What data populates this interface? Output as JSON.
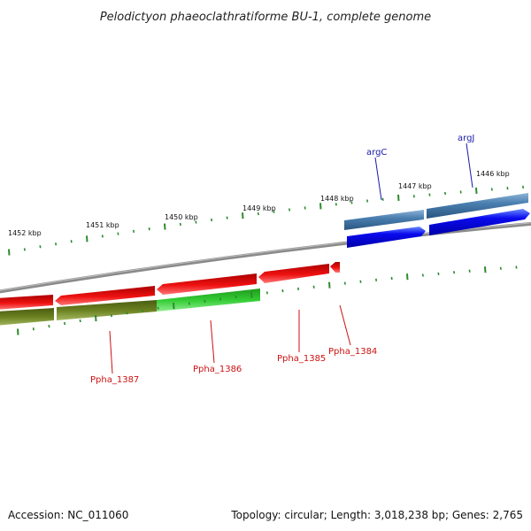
{
  "title": "Pelodictyon phaeoclathratiforme BU-1, complete genome",
  "footer": {
    "accession": "Accession: NC_011060",
    "topology": "Topology: circular; Length: 3,018,238 bp; Genes: 2,765"
  },
  "colors": {
    "backbone": "#808080",
    "tick": "#2e8b2e",
    "forward_label": "#1a1aa8",
    "reverse_label": "#cc1111",
    "cog_steel": "#4a7fb0",
    "cds_forward": "#0a0aee",
    "cds_reverse": "#ee1111",
    "cog_olive": "#6b8020",
    "cog_green": "#33cc33"
  },
  "kbp_labels": [
    "1446 kbp",
    "1447 kbp",
    "1448 kbp",
    "1449 kbp",
    "1450 kbp",
    "1451 kbp",
    "1452 kbp"
  ],
  "genes": {
    "forward": [
      {
        "label": "argC"
      },
      {
        "label": "argJ"
      }
    ],
    "reverse": [
      {
        "label": "Ppha_1384"
      },
      {
        "label": "Ppha_1385"
      },
      {
        "label": "Ppha_1386"
      },
      {
        "label": "Ppha_1387"
      }
    ]
  }
}
